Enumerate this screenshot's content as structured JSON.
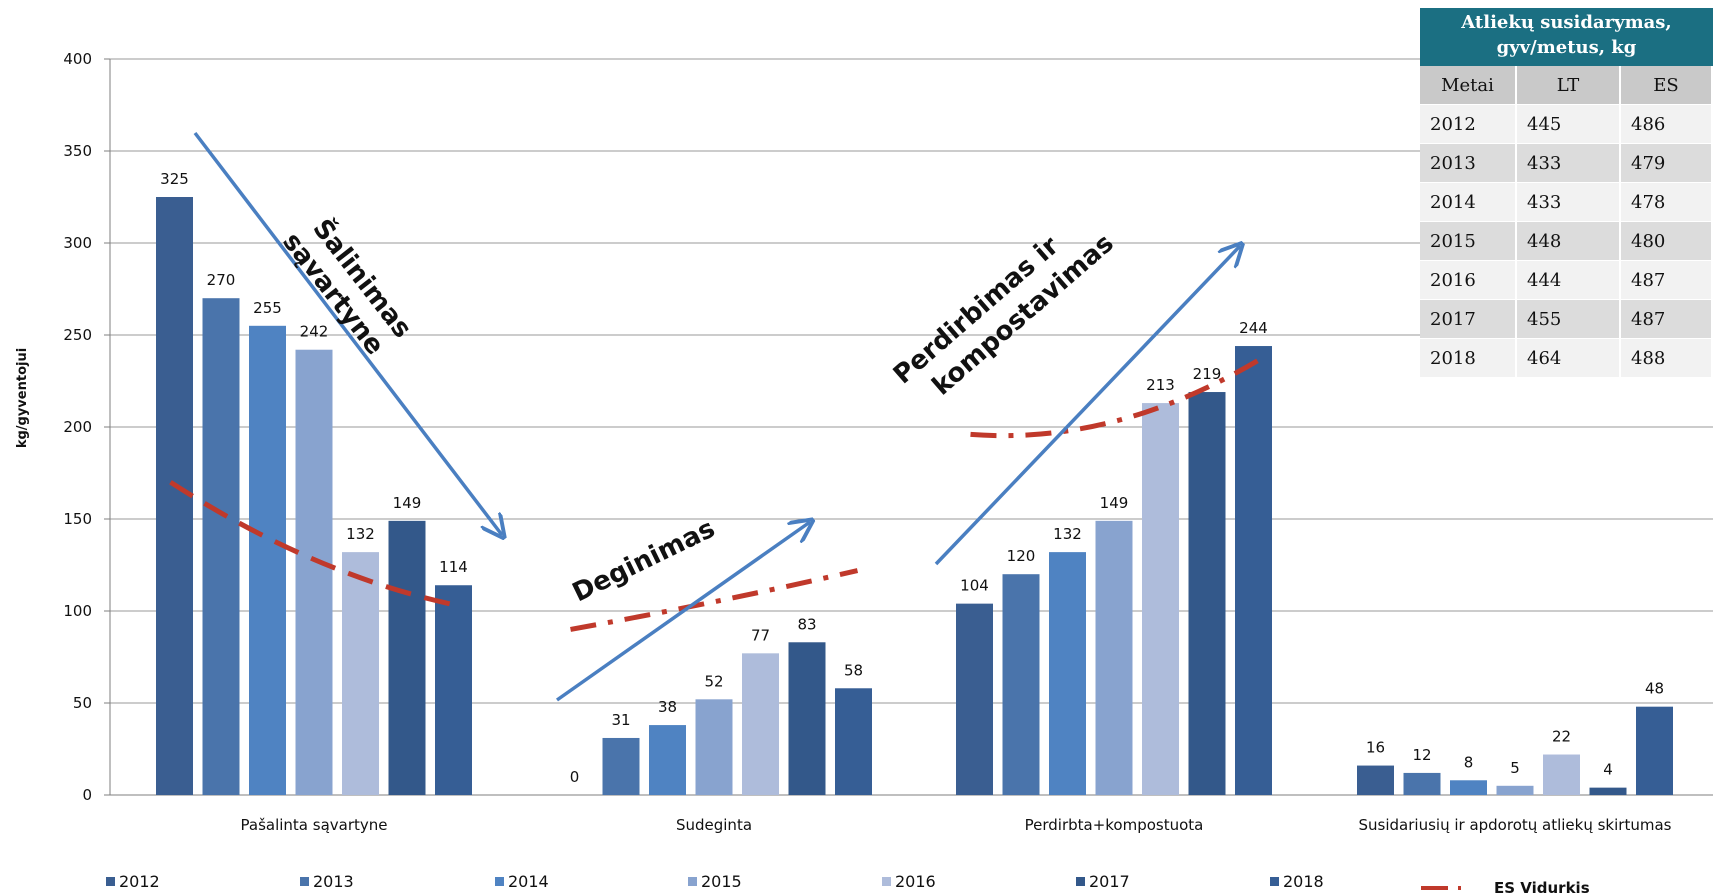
{
  "chart_data": {
    "type": "bar",
    "title": "",
    "ylabel": "kg/gyventojui",
    "xlabel": "",
    "ylim": [
      0,
      400
    ],
    "yticks": [
      0,
      50,
      100,
      150,
      200,
      250,
      300,
      350,
      400
    ],
    "grid": true,
    "legend_position": "bottom",
    "categories": [
      "Pašalinta sąvartyne",
      "Sudeginta",
      "Perdirbta+kompostuota",
      "Susidariusių ir apdorotų atliekų skirtumas"
    ],
    "series": [
      {
        "name": "2012",
        "color": "#3a5e91",
        "values": [
          325,
          0,
          104,
          16
        ]
      },
      {
        "name": "2013",
        "color": "#4a74ab",
        "values": [
          270,
          31,
          120,
          12
        ]
      },
      {
        "name": "2014",
        "color": "#4f83c2",
        "values": [
          255,
          38,
          132,
          8
        ]
      },
      {
        "name": "2015",
        "color": "#88a3cf",
        "values": [
          242,
          52,
          149,
          5
        ]
      },
      {
        "name": "2016",
        "color": "#aebcdb",
        "values": [
          132,
          77,
          213,
          22
        ]
      },
      {
        "name": "2017",
        "color": "#33588a",
        "values": [
          149,
          83,
          219,
          4
        ]
      },
      {
        "name": "2018",
        "color": "#365e95",
        "values": [
          114,
          58,
          244,
          48
        ]
      }
    ],
    "eu_average": {
      "name": "ES Vidurkis",
      "color": "#c0392b",
      "segments": [
        [
          [
            0,
            170
          ],
          [
            3,
            128
          ],
          [
            6,
            103
          ]
        ],
        [
          [
            0,
            90
          ],
          [
            3,
            105
          ],
          [
            6,
            122
          ]
        ],
        [
          [
            0,
            196
          ],
          [
            3,
            203
          ],
          [
            6,
            236
          ]
        ]
      ]
    },
    "annotations": [
      {
        "text": "Šalinimas sąvartyne"
      },
      {
        "text": "Deginimas"
      },
      {
        "text": "Perdirbimas ir kompostavimas"
      }
    ]
  },
  "table": {
    "title_line1": "Atliekų susidarymas,",
    "title_line2": "gyv/metus, kg",
    "headers": [
      "Metai",
      "LT",
      "ES"
    ],
    "rows": [
      [
        "2012",
        "445",
        "486"
      ],
      [
        "2013",
        "433",
        "479"
      ],
      [
        "2014",
        "433",
        "478"
      ],
      [
        "2015",
        "448",
        "480"
      ],
      [
        "2016",
        "444",
        "487"
      ],
      [
        "2017",
        "455",
        "487"
      ],
      [
        "2018",
        "464",
        "488"
      ]
    ]
  }
}
